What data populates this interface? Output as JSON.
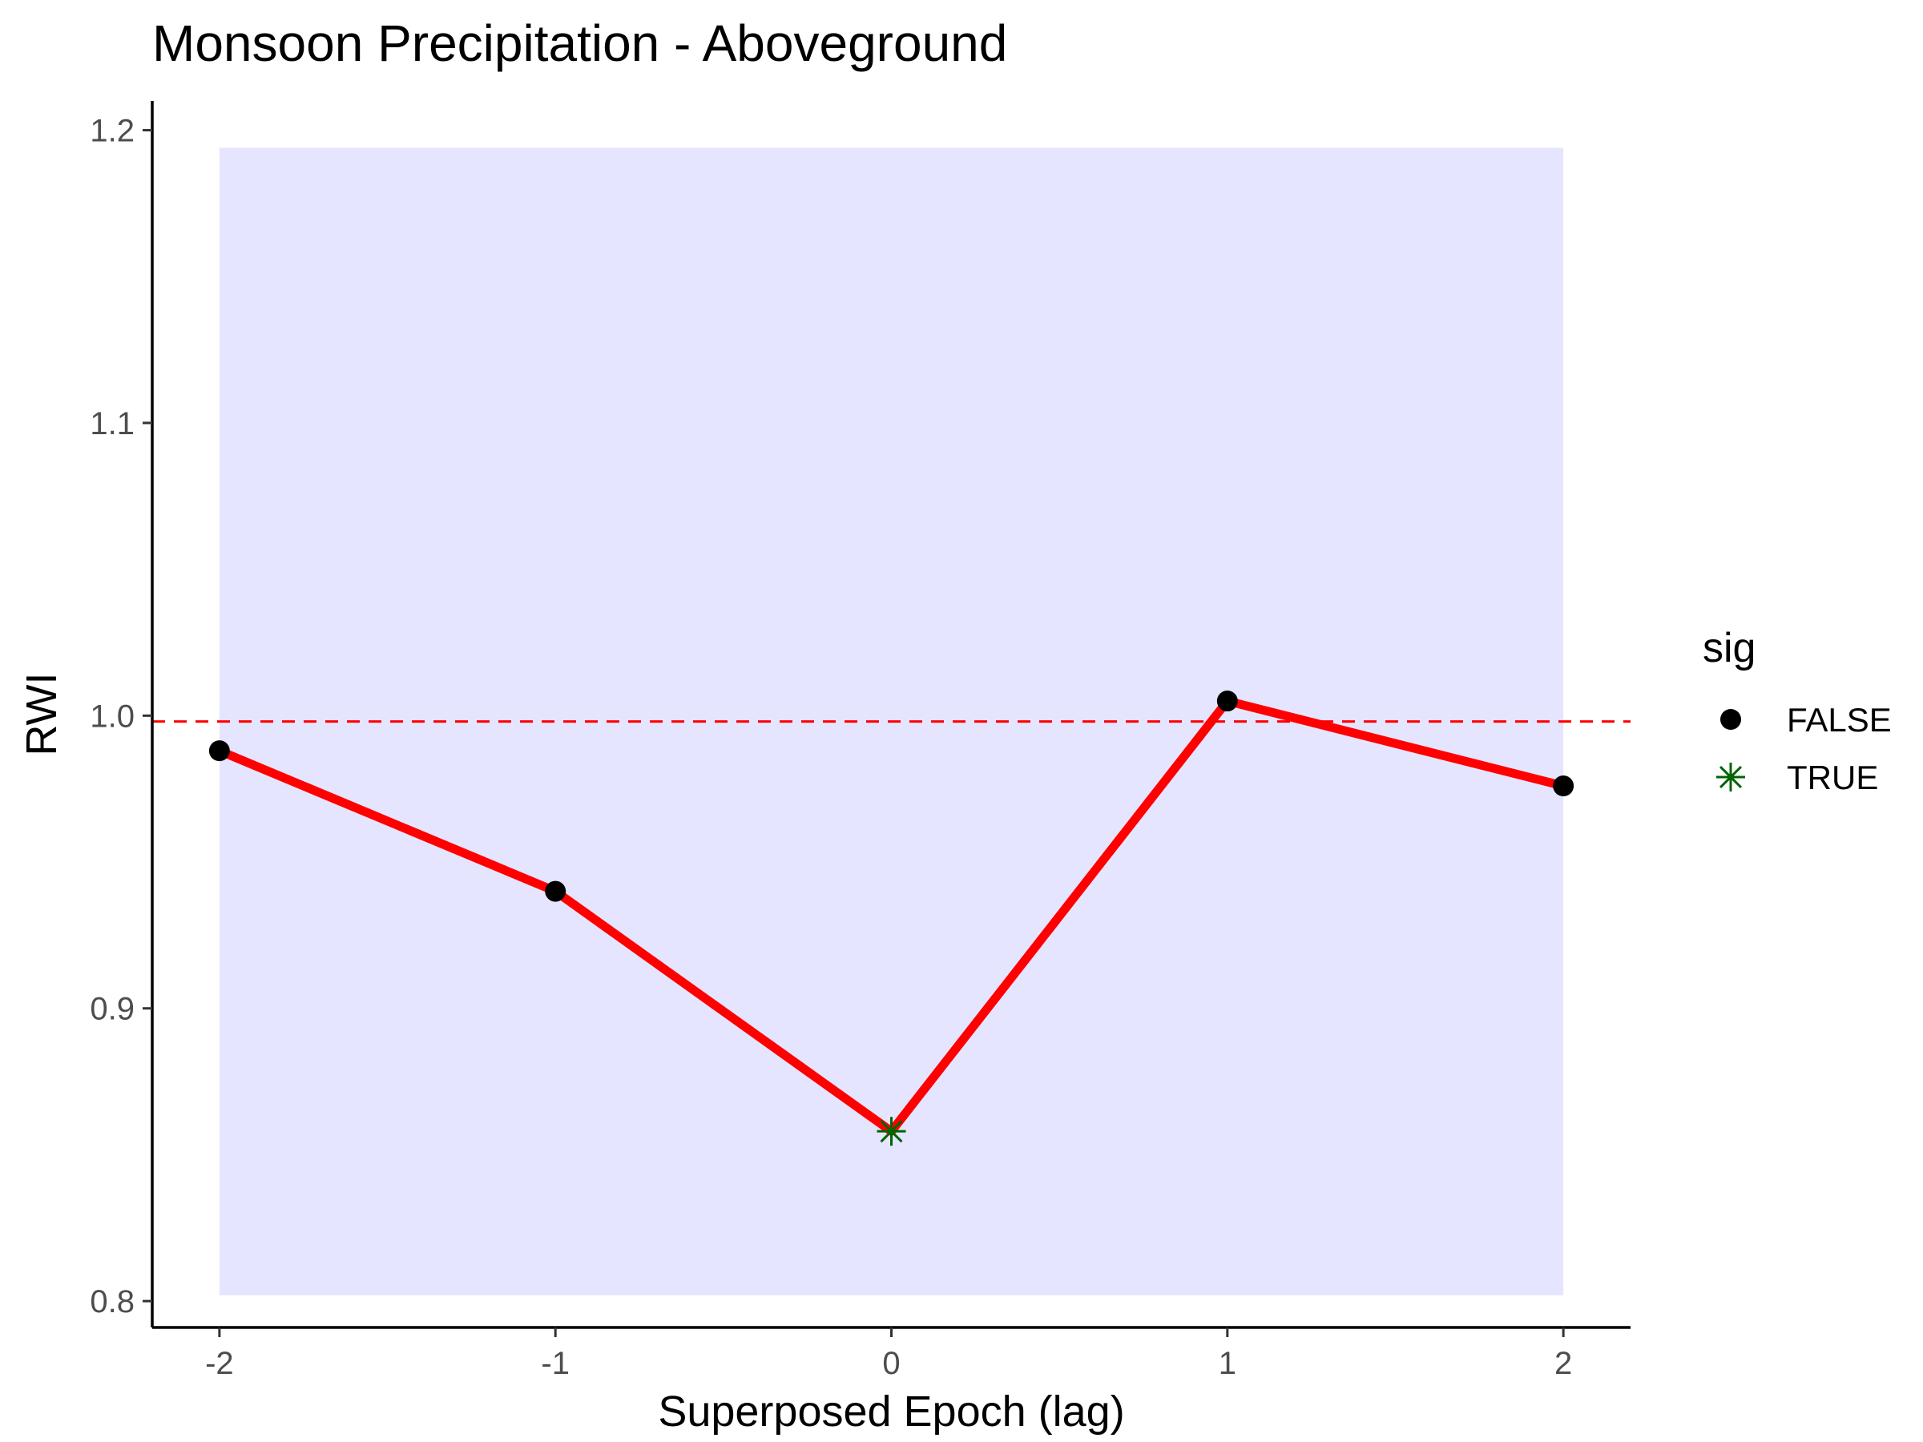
{
  "chart_data": {
    "type": "line",
    "title": "Monsoon Precipitation - Aboveground",
    "xlabel": "Superposed Epoch (lag)",
    "ylabel": "RWI",
    "x": [
      -2,
      -1,
      0,
      1,
      2
    ],
    "x_tick_labels": [
      "-2",
      "-1",
      "0",
      "1",
      "2"
    ],
    "xlim": [
      -2.2,
      2.2
    ],
    "y_ticks": [
      0.8,
      0.9,
      1.0,
      1.1,
      1.2
    ],
    "y_tick_labels": [
      "0.8",
      "0.9",
      "1.0",
      "1.1",
      "1.2"
    ],
    "ylim": [
      0.791,
      1.21
    ],
    "series": [
      {
        "values": [
          0.988,
          0.94,
          0.858,
          1.005,
          0.976
        ],
        "sig": [
          false,
          false,
          true,
          false,
          false
        ],
        "line_color": "#ff0000"
      }
    ],
    "confidence_band": {
      "lower": 0.802,
      "upper": 1.194,
      "x_range": [
        -2,
        2
      ],
      "color": "#e5e5ff"
    },
    "reference_line": {
      "y": 0.998,
      "style": "dashed",
      "color": "#ff0000"
    },
    "legend": {
      "title": "sig",
      "placement": "right",
      "entries": [
        {
          "label": "FALSE",
          "marker": "filled-circle",
          "color": "#000000"
        },
        {
          "label": "TRUE",
          "marker": "asterisk",
          "color": "#006400"
        }
      ]
    },
    "grid": false
  }
}
